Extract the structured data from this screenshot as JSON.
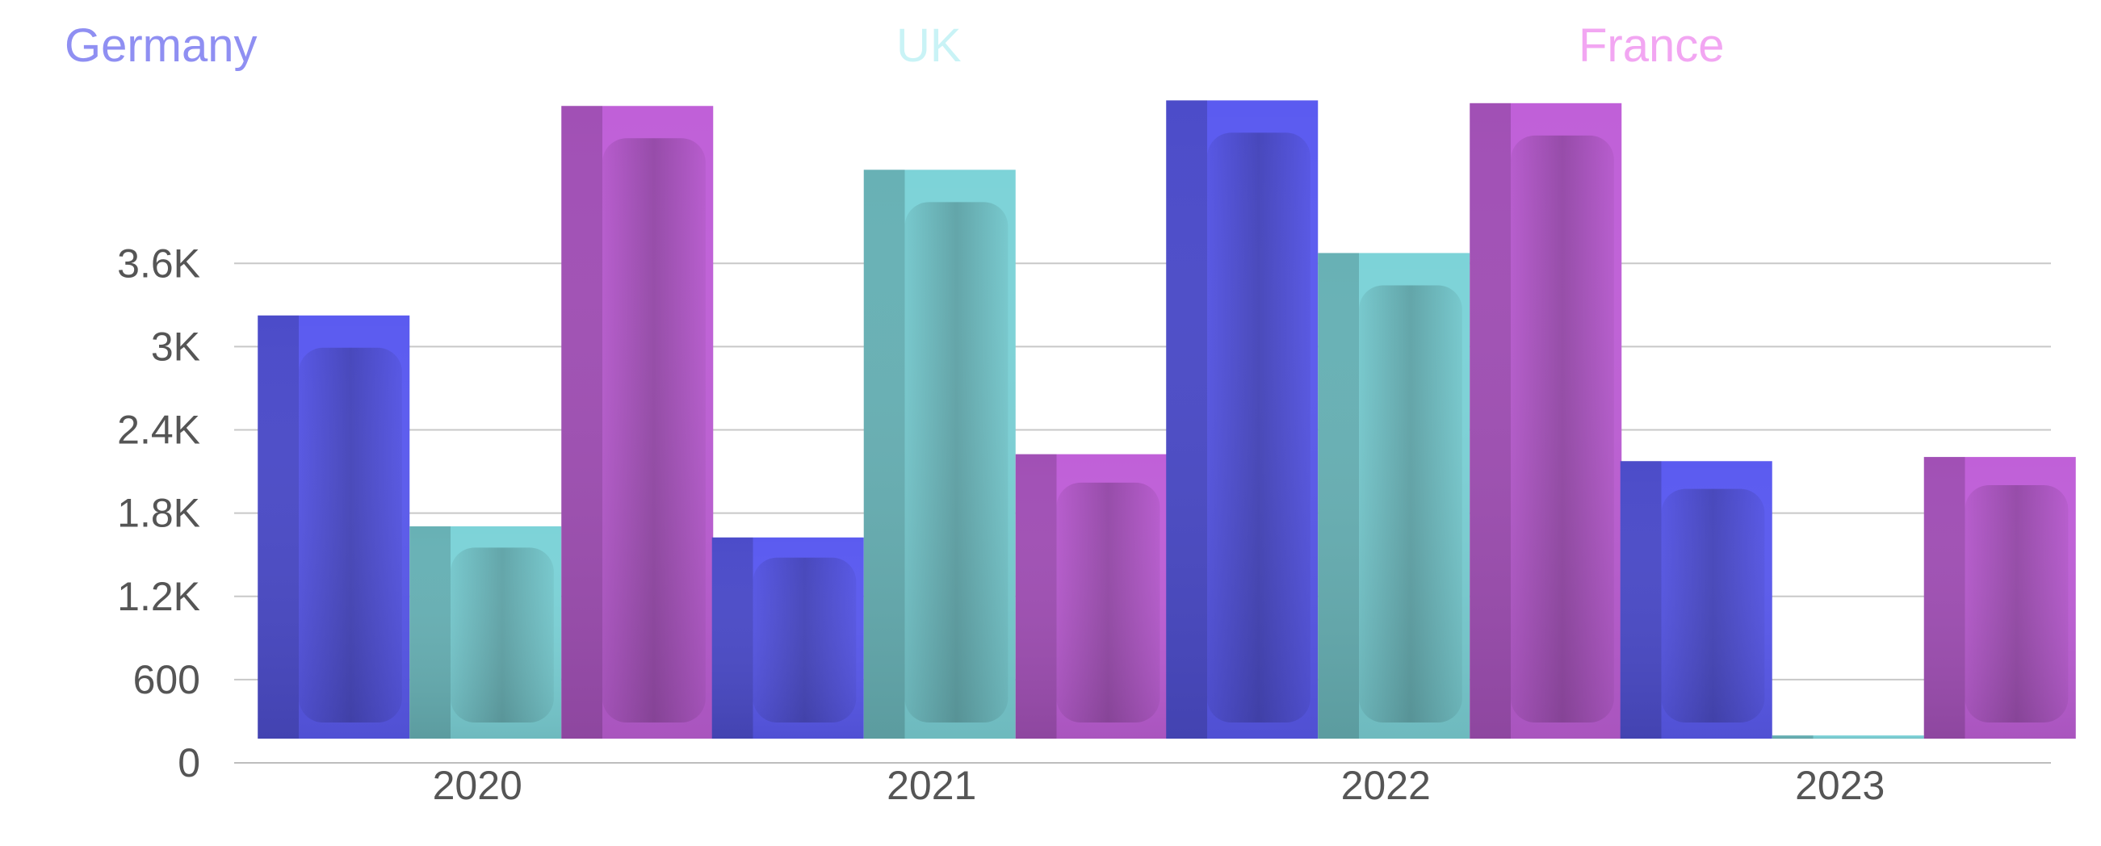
{
  "chart_data": {
    "type": "bar",
    "categories": [
      "2020",
      "2021",
      "2022",
      "2023"
    ],
    "series": [
      {
        "name": "Germany",
        "values": [
          3050,
          1450,
          4600,
          2000
        ],
        "color": "#5b5bf0",
        "legend_color": "#8f8ff2"
      },
      {
        "name": "UK",
        "values": [
          1530,
          4100,
          3500,
          0
        ],
        "color": "#7dd3d8",
        "legend_color": "#c9f3f6"
      },
      {
        "name": "France",
        "values": [
          4560,
          2050,
          4580,
          2030
        ],
        "color": "#c060d8",
        "legend_color": "#f2a6f2"
      }
    ],
    "y_ticks": [
      {
        "value": 0,
        "label": "0"
      },
      {
        "value": 600,
        "label": "600"
      },
      {
        "value": 1200,
        "label": "1.2K"
      },
      {
        "value": 1800,
        "label": "1.8K"
      },
      {
        "value": 2400,
        "label": "2.4K"
      },
      {
        "value": 3000,
        "label": "3K"
      },
      {
        "value": 3600,
        "label": "3.6K"
      }
    ],
    "ylim": [
      0,
      4800
    ],
    "grid": true,
    "legend": "top",
    "title": "",
    "xlabel": "",
    "ylabel": ""
  }
}
